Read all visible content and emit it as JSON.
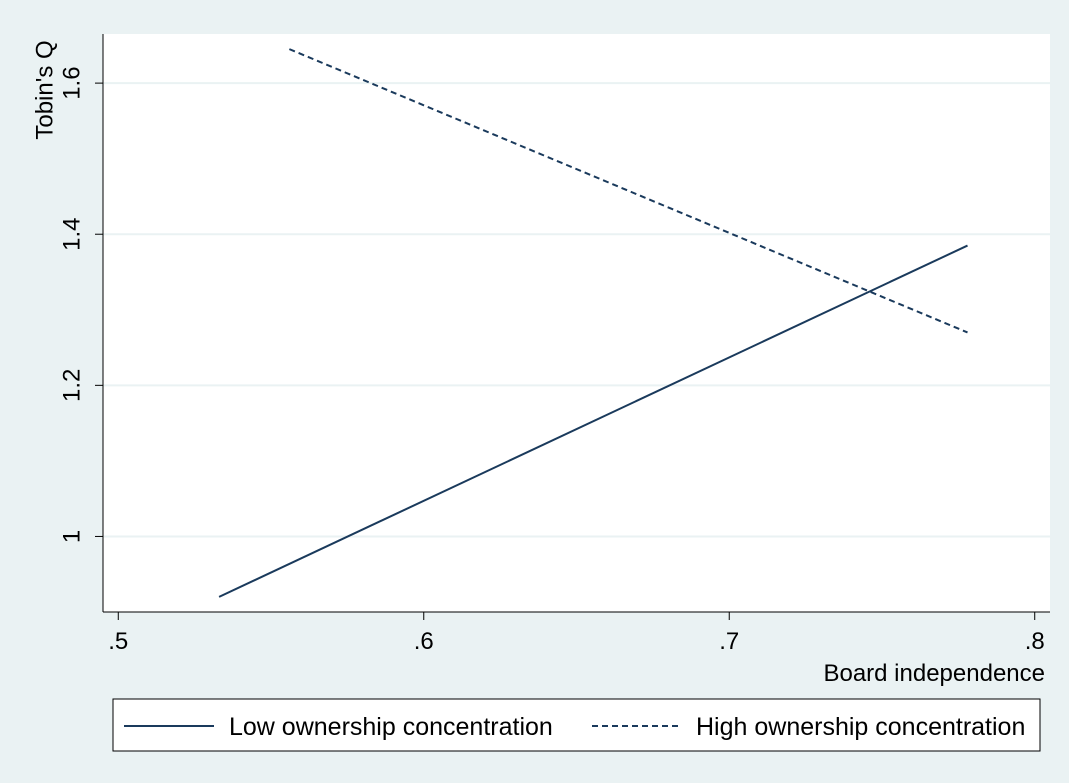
{
  "chart_data": {
    "type": "line",
    "title": "",
    "xlabel": "Board independence",
    "ylabel": "Tobin's Q",
    "xlim": [
      0.495,
      0.805
    ],
    "ylim": [
      0.9,
      1.665
    ],
    "x_ticks": [
      {
        "value": 0.5,
        "label": ".5"
      },
      {
        "value": 0.6,
        "label": ".6"
      },
      {
        "value": 0.7,
        "label": ".7"
      },
      {
        "value": 0.8,
        "label": ".8"
      }
    ],
    "y_ticks": [
      {
        "value": 1.0,
        "label": "1"
      },
      {
        "value": 1.2,
        "label": "1.2"
      },
      {
        "value": 1.4,
        "label": "1.4"
      },
      {
        "value": 1.6,
        "label": "1.6"
      }
    ],
    "grid": true,
    "legend_position": "bottom",
    "series": [
      {
        "name": "Low ownership concentration",
        "style": "solid",
        "color": "#1a3a5c",
        "points": [
          [
            0.533,
            0.92
          ],
          [
            0.778,
            1.385
          ]
        ]
      },
      {
        "name": "High ownership concentration",
        "style": "dashed",
        "color": "#1a3a5c",
        "points": [
          [
            0.556,
            1.645
          ],
          [
            0.778,
            1.27
          ]
        ]
      }
    ],
    "colors": {
      "background": "#eaf2f3",
      "plot_background": "#ffffff",
      "grid": "#eaf2f3",
      "line": "#1a3a5c"
    }
  }
}
